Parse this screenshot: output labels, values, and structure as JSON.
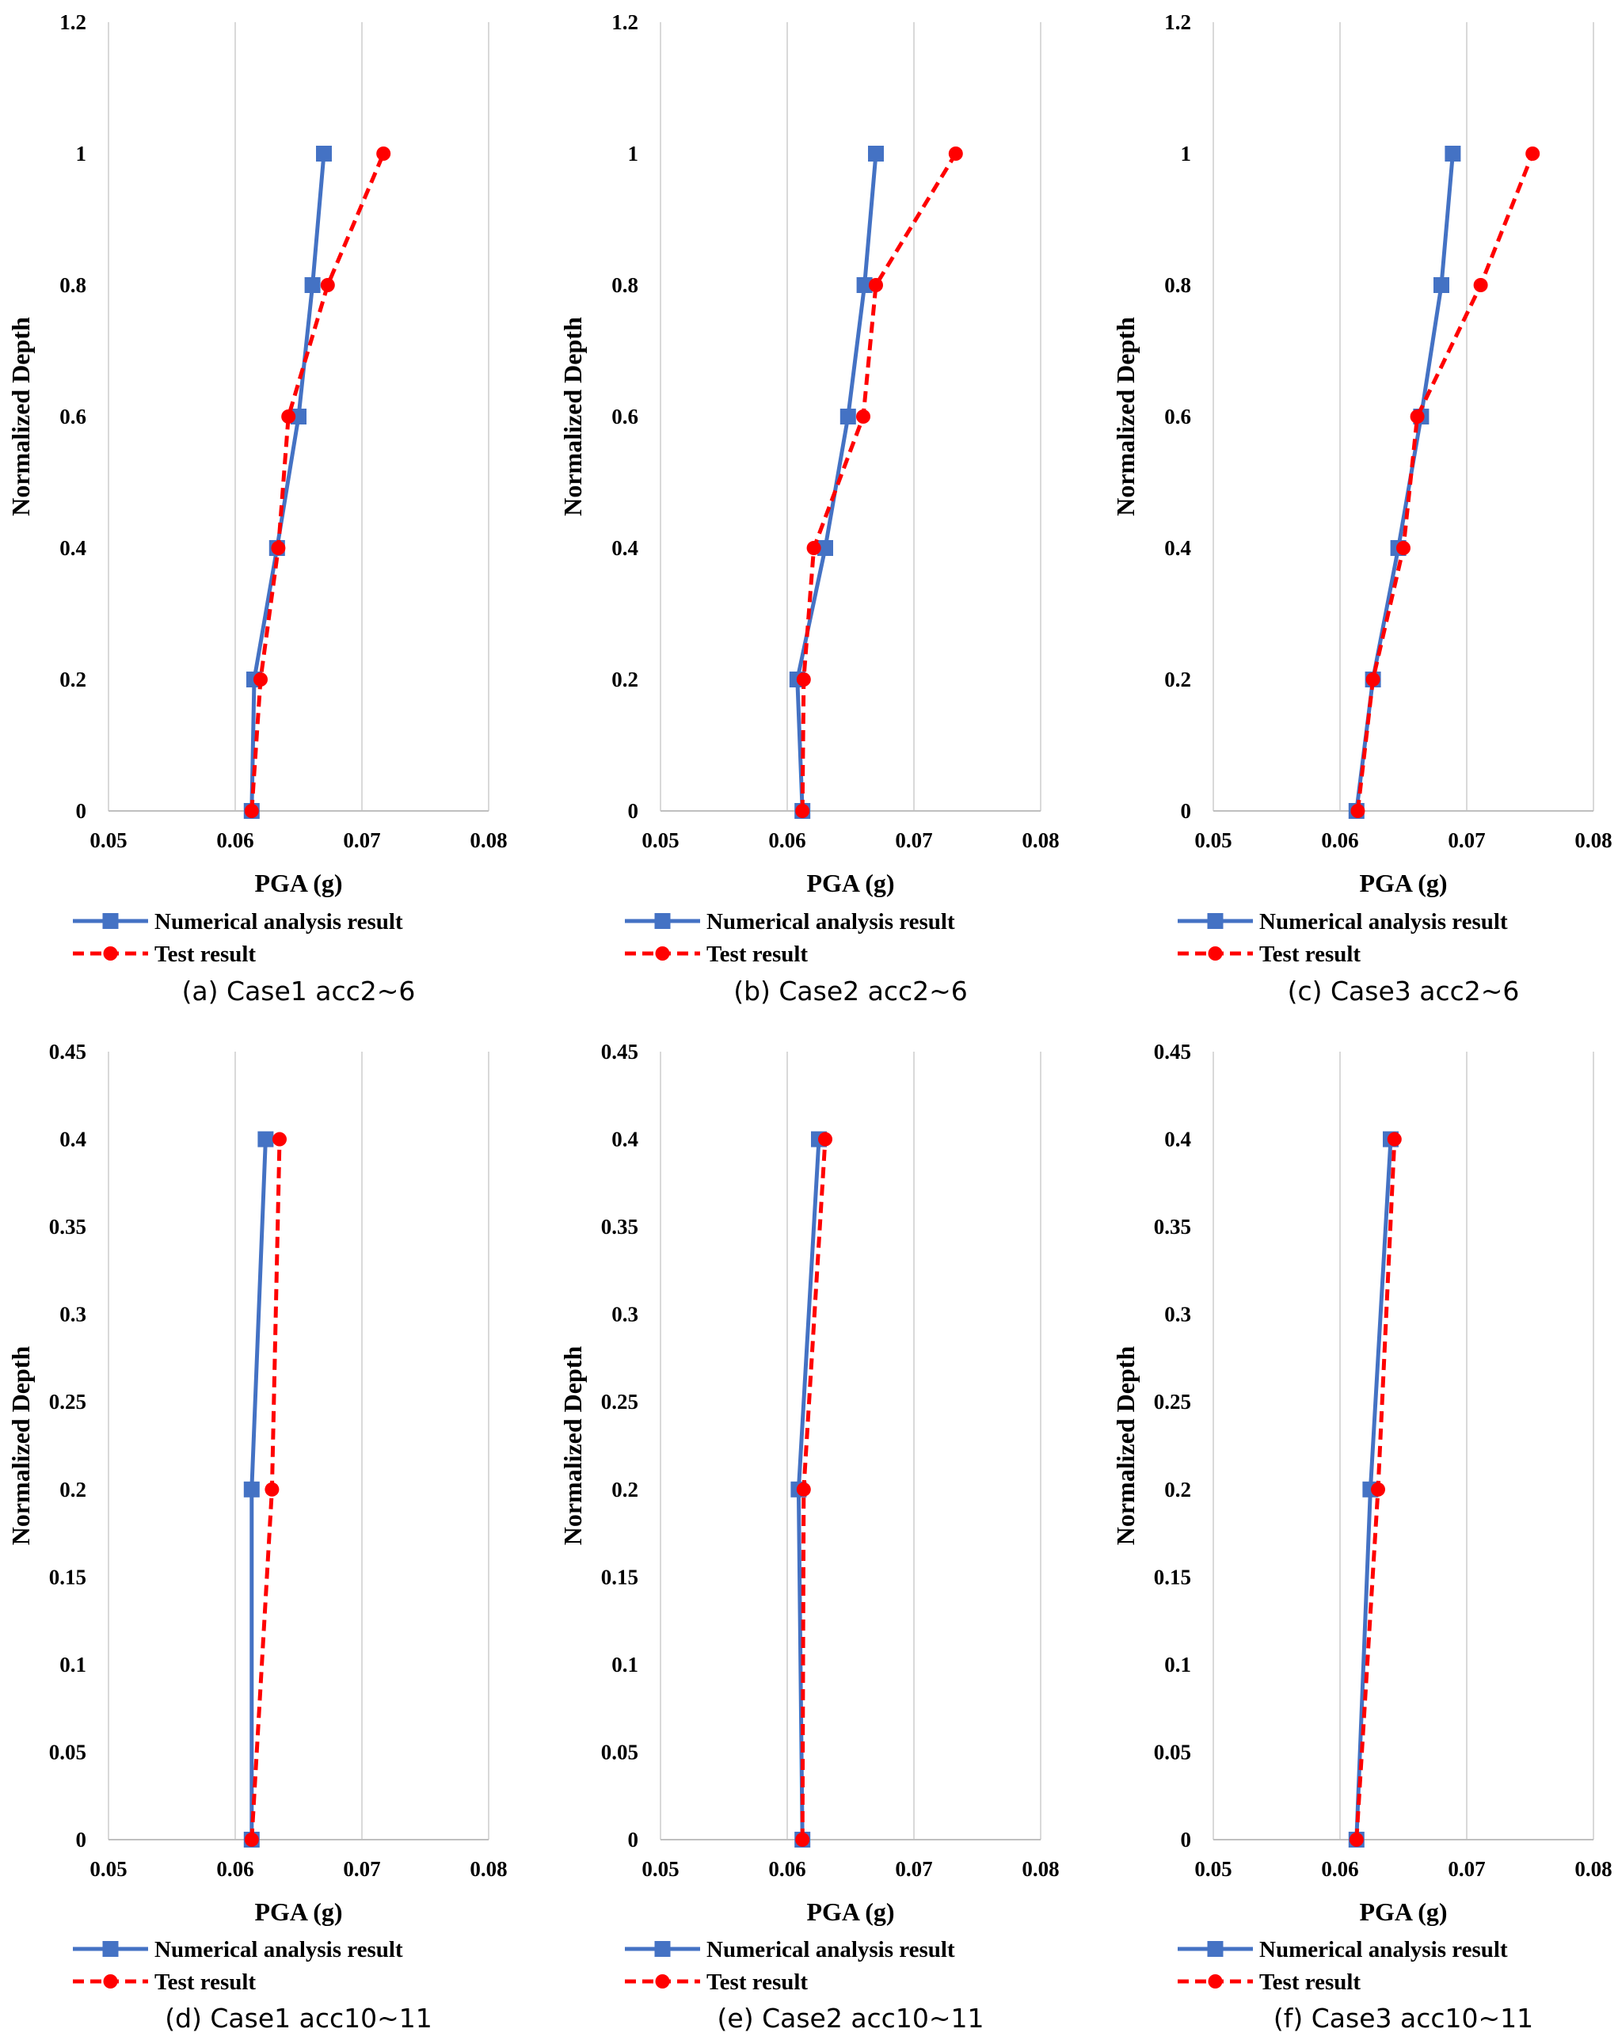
{
  "colors": {
    "numerical": "#4472C4",
    "test": "#FF0000"
  },
  "chart_data": [
    {
      "type": "line",
      "caption": "(a) Case1 acc2~6",
      "xlabel": "PGA (g)",
      "ylabel": "Normalized Depth",
      "xlim": [
        0.05,
        0.08
      ],
      "ylim": [
        0,
        1.2
      ],
      "xticks": [
        "0.05",
        "0.06",
        "0.07",
        "0.08"
      ],
      "yticks": [
        "0",
        "0.2",
        "0.4",
        "0.6",
        "0.8",
        "1",
        "1.2"
      ],
      "legend_position": "bottom",
      "series": [
        {
          "name": "Numerical analysis result",
          "style": "solid-square",
          "x": [
            0.0613,
            0.0615,
            0.0633,
            0.065,
            0.0661,
            0.067
          ],
          "y": [
            0,
            0.2,
            0.4,
            0.6,
            0.8,
            1.0
          ]
        },
        {
          "name": "Test result",
          "style": "dashed-circle",
          "x": [
            0.0613,
            0.062,
            0.0634,
            0.0642,
            0.0673,
            0.0717
          ],
          "y": [
            0,
            0.2,
            0.4,
            0.6,
            0.8,
            1.0
          ]
        }
      ]
    },
    {
      "type": "line",
      "caption": "(b) Case2 acc2~6",
      "xlabel": "PGA (g)",
      "ylabel": "Normalized Depth",
      "xlim": [
        0.05,
        0.08
      ],
      "ylim": [
        0,
        1.2
      ],
      "xticks": [
        "0.05",
        "0.06",
        "0.07",
        "0.08"
      ],
      "yticks": [
        "0",
        "0.2",
        "0.4",
        "0.6",
        "0.8",
        "1",
        "1.2"
      ],
      "legend_position": "bottom",
      "series": [
        {
          "name": "Numerical analysis result",
          "style": "solid-square",
          "x": [
            0.0612,
            0.0608,
            0.063,
            0.0648,
            0.0661,
            0.067
          ],
          "y": [
            0,
            0.2,
            0.4,
            0.6,
            0.8,
            1.0
          ]
        },
        {
          "name": "Test result",
          "style": "dashed-circle",
          "x": [
            0.0612,
            0.0613,
            0.0621,
            0.066,
            0.067,
            0.0733
          ],
          "y": [
            0,
            0.2,
            0.4,
            0.6,
            0.8,
            1.0
          ]
        }
      ]
    },
    {
      "type": "line",
      "caption": "(c) Case3 acc2~6",
      "xlabel": "PGA (g)",
      "ylabel": "Normalized Depth",
      "xlim": [
        0.05,
        0.08
      ],
      "ylim": [
        0,
        1.2
      ],
      "xticks": [
        "0.05",
        "0.06",
        "0.07",
        "0.08"
      ],
      "yticks": [
        "0",
        "0.2",
        "0.4",
        "0.6",
        "0.8",
        "1",
        "1.2"
      ],
      "legend_position": "bottom",
      "series": [
        {
          "name": "Numerical analysis result",
          "style": "solid-square",
          "x": [
            0.0613,
            0.0626,
            0.0646,
            0.0664,
            0.068,
            0.0689
          ],
          "y": [
            0,
            0.2,
            0.4,
            0.6,
            0.8,
            1.0
          ]
        },
        {
          "name": "Test result",
          "style": "dashed-circle",
          "x": [
            0.0614,
            0.0626,
            0.065,
            0.0661,
            0.0711,
            0.0752
          ],
          "y": [
            0,
            0.2,
            0.4,
            0.6,
            0.8,
            1.0
          ]
        }
      ]
    },
    {
      "type": "line",
      "caption": "(d) Case1 acc10~11",
      "xlabel": "PGA (g)",
      "ylabel": "Normalized Depth",
      "xlim": [
        0.05,
        0.08
      ],
      "ylim": [
        0,
        0.45
      ],
      "xticks": [
        "0.05",
        "0.06",
        "0.07",
        "0.08"
      ],
      "yticks": [
        "0",
        "0.05",
        "0.1",
        "0.15",
        "0.2",
        "0.25",
        "0.3",
        "0.35",
        "0.4",
        "0.45"
      ],
      "legend_position": "bottom",
      "series": [
        {
          "name": "Numerical analysis result",
          "style": "solid-square",
          "x": [
            0.0613,
            0.0613,
            0.0624
          ],
          "y": [
            0,
            0.2,
            0.4
          ]
        },
        {
          "name": "Test result",
          "style": "dashed-circle",
          "x": [
            0.0613,
            0.0629,
            0.0635
          ],
          "y": [
            0,
            0.2,
            0.4
          ]
        }
      ]
    },
    {
      "type": "line",
      "caption": "(e) Case2 acc10~11",
      "xlabel": "PGA (g)",
      "ylabel": "Normalized Depth",
      "xlim": [
        0.05,
        0.08
      ],
      "ylim": [
        0,
        0.45
      ],
      "xticks": [
        "0.05",
        "0.06",
        "0.07",
        "0.08"
      ],
      "yticks": [
        "0",
        "0.05",
        "0.1",
        "0.15",
        "0.2",
        "0.25",
        "0.3",
        "0.35",
        "0.4",
        "0.45"
      ],
      "legend_position": "bottom",
      "series": [
        {
          "name": "Numerical analysis result",
          "style": "solid-square",
          "x": [
            0.0612,
            0.0609,
            0.0625
          ],
          "y": [
            0,
            0.2,
            0.4
          ]
        },
        {
          "name": "Test result",
          "style": "dashed-circle",
          "x": [
            0.0612,
            0.0613,
            0.063
          ],
          "y": [
            0,
            0.2,
            0.4
          ]
        }
      ]
    },
    {
      "type": "line",
      "caption": "(f) Case3 acc10~11",
      "xlabel": "PGA (g)",
      "ylabel": "Normalized Depth",
      "xlim": [
        0.05,
        0.08
      ],
      "ylim": [
        0,
        0.45
      ],
      "xticks": [
        "0.05",
        "0.06",
        "0.07",
        "0.08"
      ],
      "yticks": [
        "0",
        "0.05",
        "0.1",
        "0.15",
        "0.2",
        "0.25",
        "0.3",
        "0.35",
        "0.4",
        "0.45"
      ],
      "legend_position": "bottom",
      "series": [
        {
          "name": "Numerical analysis result",
          "style": "solid-square",
          "x": [
            0.0613,
            0.0624,
            0.064
          ],
          "y": [
            0,
            0.2,
            0.4
          ]
        },
        {
          "name": "Test result",
          "style": "dashed-circle",
          "x": [
            0.0613,
            0.063,
            0.0643
          ],
          "y": [
            0,
            0.2,
            0.4
          ]
        }
      ]
    }
  ]
}
